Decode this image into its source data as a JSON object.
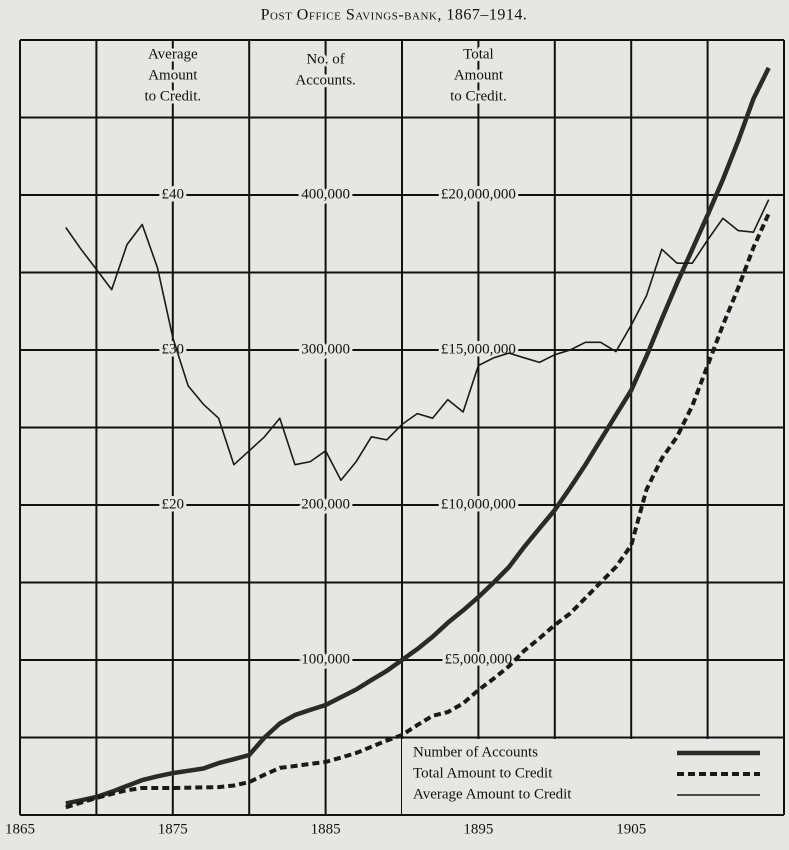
{
  "chart_data": {
    "type": "line",
    "title": "Post Office Savings-bank, 1867–1914.",
    "ylabel": [
      "No. of",
      "Accounts."
    ],
    "y2label": [
      "Total",
      "Amount",
      "to Credit."
    ],
    "y3label": [
      "Average",
      "Amount",
      "to Credit."
    ],
    "xlim": [
      1865,
      1915
    ],
    "xticks": [
      1865,
      1875,
      1885,
      1895,
      1905
    ],
    "xgrid": [
      1865,
      1870,
      1875,
      1880,
      1885,
      1890,
      1895,
      1900,
      1905,
      1910,
      1915
    ],
    "ylim": [
      0,
      500000
    ],
    "yticks": [
      {
        "value": 100000,
        "label": "100,000"
      },
      {
        "value": 200000,
        "label": "200,000"
      },
      {
        "value": 300000,
        "label": "300,000"
      },
      {
        "value": 400000,
        "label": "400,000"
      }
    ],
    "ygrid": [
      0,
      50000,
      100000,
      150000,
      200000,
      250000,
      300000,
      350000,
      400000,
      450000,
      500000
    ],
    "y2lim": [
      0,
      25000000
    ],
    "y2ticks": [
      {
        "value": 5000000,
        "label": "£5,000,000"
      },
      {
        "value": 10000000,
        "label": "£10,000,000"
      },
      {
        "value": 15000000,
        "label": "£15,000,000"
      },
      {
        "value": 20000000,
        "label": "£20,000,000"
      }
    ],
    "y3lim": [
      0,
      50
    ],
    "y3ticks": [
      {
        "value": 20,
        "label": "£20"
      },
      {
        "value": 30,
        "label": "£30"
      },
      {
        "value": 40,
        "label": "£40"
      }
    ],
    "grid": true,
    "legend": "bottom-right",
    "x": [
      1868,
      1869,
      1870,
      1871,
      1872,
      1873,
      1874,
      1875,
      1876,
      1877,
      1878,
      1879,
      1880,
      1881,
      1882,
      1883,
      1884,
      1885,
      1886,
      1887,
      1888,
      1889,
      1890,
      1891,
      1892,
      1893,
      1894,
      1895,
      1896,
      1897,
      1898,
      1899,
      1900,
      1901,
      1902,
      1903,
      1904,
      1905,
      1906,
      1907,
      1908,
      1909,
      1910,
      1911,
      1912,
      1913,
      1914
    ],
    "series": [
      {
        "name": "Number of Accounts",
        "axis": "y",
        "color": "#2a2a2a",
        "line_style": "double",
        "values": [
          7500,
          9500,
          11600,
          15000,
          18800,
          22500,
          25000,
          27000,
          28500,
          30000,
          33500,
          36000,
          38700,
          50000,
          59000,
          64500,
          67800,
          71000,
          76000,
          81000,
          87000,
          93000,
          100000,
          107000,
          115000,
          124000,
          132000,
          140600,
          150000,
          160000,
          173000,
          185000,
          196800,
          211000,
          226000,
          242000,
          258000,
          274000,
          296000,
          320000,
          343000,
          365000,
          387000,
          410000,
          435000,
          462000,
          482000
        ]
      },
      {
        "name": "Total Amount to Credit",
        "axis": "y2",
        "color": "#1a1a1a",
        "line_style": "dashed",
        "values": [
          250000,
          400000,
          550000,
          680000,
          800000,
          870000,
          870000,
          870000,
          880000,
          890000,
          900000,
          950000,
          1060000,
          1300000,
          1520000,
          1580000,
          1650000,
          1710000,
          1850000,
          2000000,
          2200000,
          2400000,
          2580000,
          2900000,
          3200000,
          3320000,
          3600000,
          4030000,
          4400000,
          4800000,
          5300000,
          5700000,
          6130000,
          6500000,
          7000000,
          7500000,
          8000000,
          8700000,
          10500000,
          11500000,
          12200000,
          13200000,
          14500000,
          15800000,
          17000000,
          18300000,
          19400000
        ]
      },
      {
        "name": "Average Amount to Credit",
        "axis": "y3",
        "color": "#1a1a1a",
        "line_style": "thin",
        "values": [
          37.9,
          36.5,
          35.2,
          33.9,
          36.8,
          38.1,
          35.3,
          30.8,
          27.7,
          26.5,
          25.6,
          22.6,
          23.5,
          24.4,
          25.6,
          22.6,
          22.8,
          23.5,
          21.6,
          22.8,
          24.4,
          24.2,
          25.2,
          25.9,
          25.6,
          26.8,
          26.0,
          29.0,
          29.5,
          29.8,
          29.5,
          29.2,
          29.7,
          30.0,
          30.5,
          30.5,
          29.9,
          31.6,
          33.5,
          36.5,
          35.6,
          35.6,
          37.1,
          38.5,
          37.7,
          37.6,
          39.7
        ]
      }
    ]
  }
}
